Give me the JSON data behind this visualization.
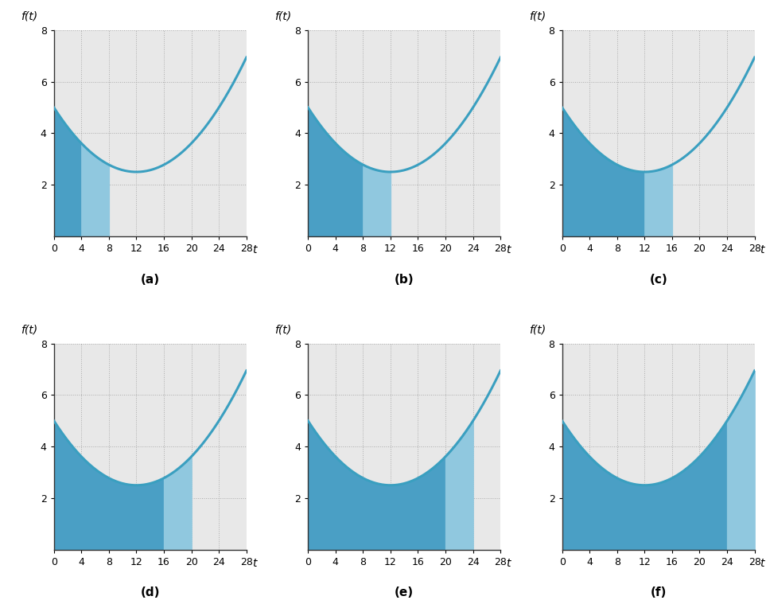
{
  "subplots": [
    {
      "label": "(a)",
      "shade1_end": 4,
      "shade2_end": 8
    },
    {
      "label": "(b)",
      "shade1_end": 8,
      "shade2_end": 12
    },
    {
      "label": "(c)",
      "shade1_end": 12,
      "shade2_end": 16
    },
    {
      "label": "(d)",
      "shade1_end": 16,
      "shade2_end": 20
    },
    {
      "label": "(e)",
      "shade1_end": 20,
      "shade2_end": 24
    },
    {
      "label": "(f)",
      "shade1_end": 24,
      "shade2_end": 28
    }
  ],
  "t_start": 0,
  "t_end": 28,
  "ylim": [
    0,
    8
  ],
  "yticks": [
    2,
    4,
    6,
    8
  ],
  "xticks": [
    0,
    4,
    8,
    12,
    16,
    20,
    24,
    28
  ],
  "xlabel": "t",
  "ylabel": "f(t)",
  "curve_color": "#3a9fc0",
  "shade_dark_color": "#4a9fc5",
  "shade_light_color": "#90c8df",
  "curve_lw": 2.2,
  "background_color": "#e8e8e8",
  "a": 0.017361,
  "b": -0.41667,
  "c_coef": 5.0
}
